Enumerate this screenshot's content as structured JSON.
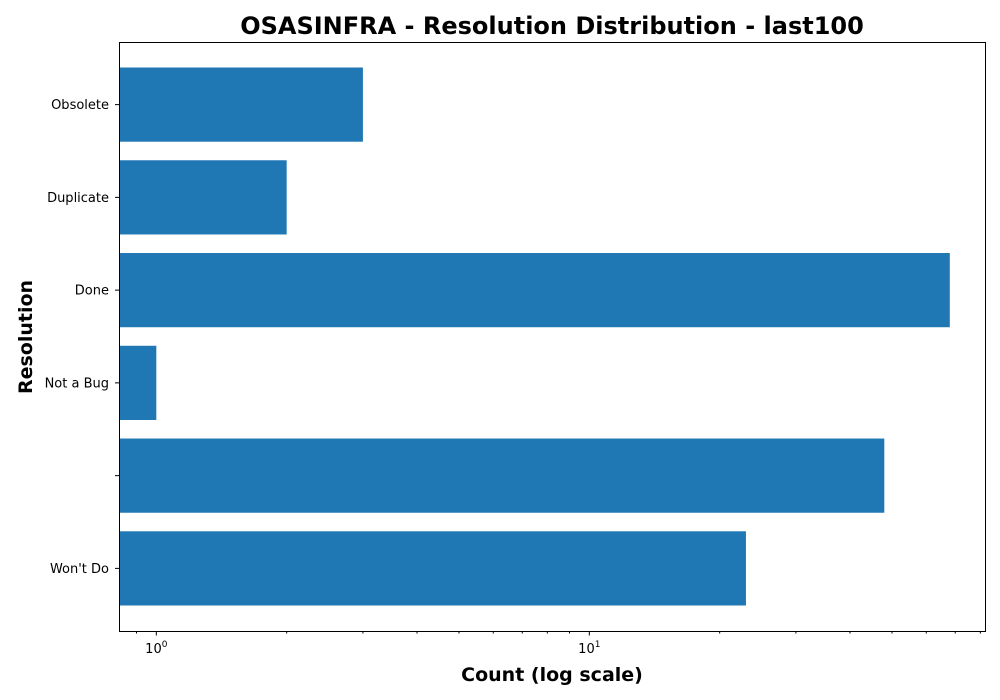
{
  "chart_data": {
    "type": "bar",
    "orientation": "horizontal",
    "title": "OSASINFRA - Resolution Distribution - last100",
    "xlabel": "Count (log scale)",
    "ylabel": "Resolution",
    "xscale": "log",
    "xlim": [
      0.82,
      82
    ],
    "x_ticks": [
      {
        "base": "10",
        "exponent": "0",
        "value": 1
      },
      {
        "base": "10",
        "exponent": "1",
        "value": 10
      }
    ],
    "categories": [
      "Won't Do",
      "",
      "Not a Bug",
      "Done",
      "Duplicate",
      "Obsolete"
    ],
    "values": [
      23,
      48,
      1,
      68,
      2,
      3
    ],
    "bar_color": "#1f77b4",
    "grid": false,
    "legend": "none"
  }
}
